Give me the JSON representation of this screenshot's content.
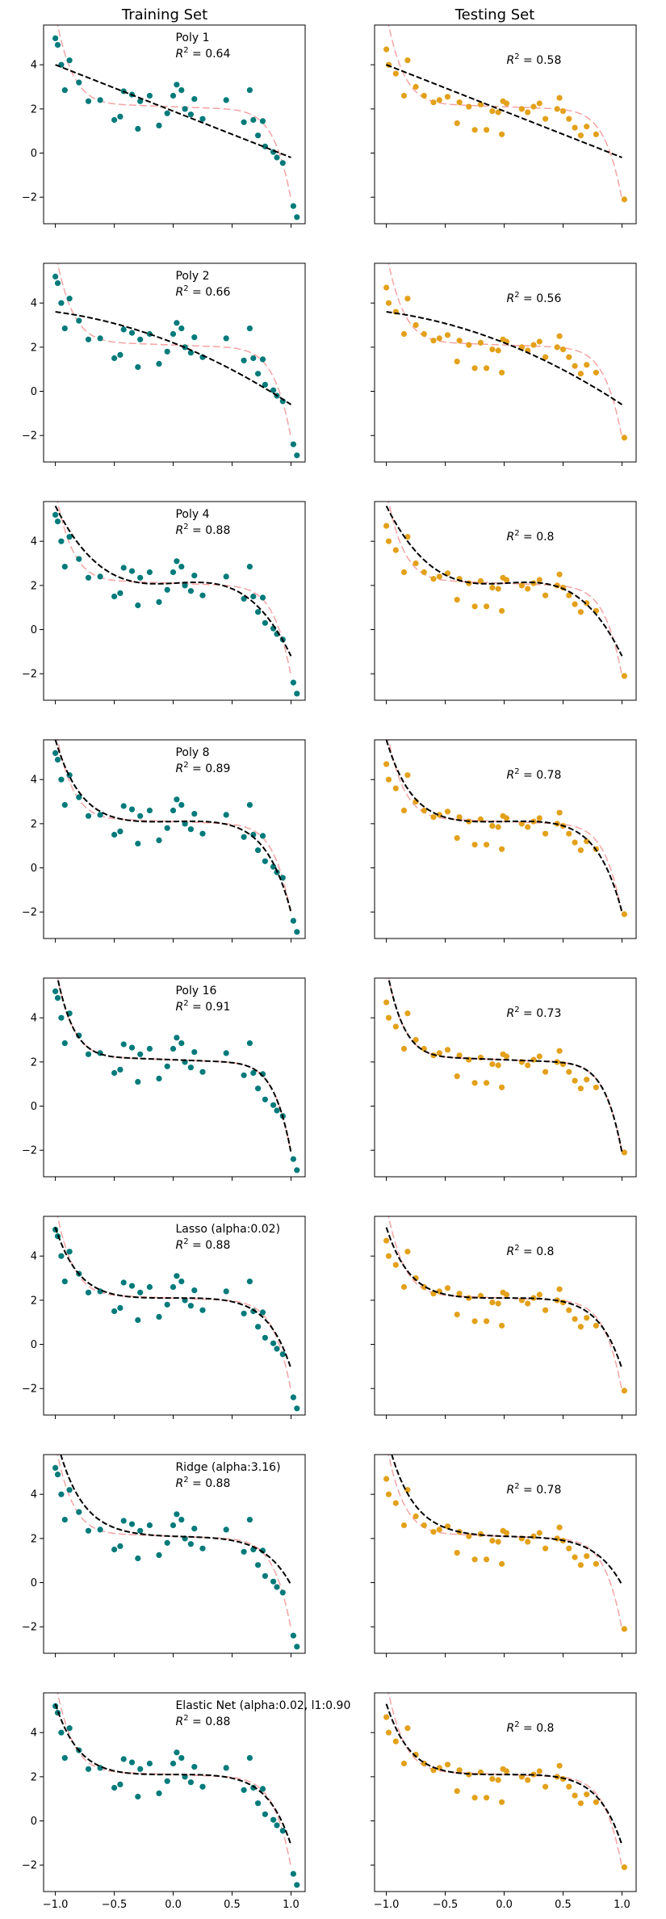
{
  "figure": {
    "column_titles": [
      "Training Set",
      "Testing Set"
    ],
    "x_ticks": [
      -1.0,
      -0.5,
      0.0,
      0.5,
      1.0
    ],
    "x_tick_labels": [
      "−1.0",
      "−0.5",
      "0.0",
      "0.5",
      "1.0"
    ],
    "y_ticks": [
      -2,
      0,
      2,
      4
    ],
    "y_tick_labels": [
      "−2",
      "0",
      "2",
      "4"
    ]
  },
  "colors": {
    "train_points": "#007a7a",
    "test_points": "#e3a11b",
    "fitted_curve": "#000000",
    "true_function": "#f4a4a4"
  },
  "chart_data": {
    "type": "scatter",
    "xlim": [
      -1.1,
      1.12
    ],
    "ylim": [
      -3.2,
      5.8
    ],
    "grid": false,
    "true_function": {
      "coef": [
        2.1,
        -0.2,
        0,
        0,
        0,
        0,
        0,
        -4
      ]
    },
    "train_points": [
      [
        -1.0,
        5.2
      ],
      [
        -0.98,
        4.9
      ],
      [
        -0.95,
        4.0
      ],
      [
        -0.92,
        2.85
      ],
      [
        -0.88,
        4.2
      ],
      [
        -0.8,
        3.2
      ],
      [
        -0.72,
        2.35
      ],
      [
        -0.62,
        2.4
      ],
      [
        -0.5,
        1.5
      ],
      [
        -0.45,
        1.65
      ],
      [
        -0.42,
        2.8
      ],
      [
        -0.35,
        2.65
      ],
      [
        -0.3,
        1.1
      ],
      [
        -0.28,
        2.35
      ],
      [
        -0.2,
        2.6
      ],
      [
        -0.12,
        1.25
      ],
      [
        -0.05,
        1.8
      ],
      [
        0.0,
        2.6
      ],
      [
        0.03,
        3.1
      ],
      [
        0.07,
        2.85
      ],
      [
        0.1,
        2.0
      ],
      [
        0.15,
        1.75
      ],
      [
        0.18,
        2.45
      ],
      [
        0.25,
        1.55
      ],
      [
        0.45,
        2.4
      ],
      [
        0.6,
        1.4
      ],
      [
        0.65,
        2.85
      ],
      [
        0.68,
        1.5
      ],
      [
        0.72,
        0.8
      ],
      [
        0.76,
        1.45
      ],
      [
        0.78,
        0.3
      ],
      [
        0.85,
        0.05
      ],
      [
        0.88,
        -0.2
      ],
      [
        0.93,
        -0.45
      ],
      [
        1.02,
        -2.4
      ],
      [
        1.05,
        -2.9
      ]
    ],
    "test_points": [
      [
        -1.0,
        4.7
      ],
      [
        -0.98,
        4.0
      ],
      [
        -0.92,
        3.6
      ],
      [
        -0.85,
        2.6
      ],
      [
        -0.82,
        4.2
      ],
      [
        -0.75,
        3.0
      ],
      [
        -0.68,
        2.6
      ],
      [
        -0.6,
        2.3
      ],
      [
        -0.55,
        2.4
      ],
      [
        -0.48,
        2.55
      ],
      [
        -0.4,
        1.35
      ],
      [
        -0.38,
        2.3
      ],
      [
        -0.3,
        2.1
      ],
      [
        -0.25,
        1.05
      ],
      [
        -0.2,
        2.2
      ],
      [
        -0.15,
        1.05
      ],
      [
        -0.1,
        1.9
      ],
      [
        -0.05,
        1.85
      ],
      [
        -0.02,
        0.85
      ],
      [
        -0.01,
        2.35
      ],
      [
        0.02,
        2.25
      ],
      [
        0.15,
        2.0
      ],
      [
        0.2,
        1.85
      ],
      [
        0.25,
        2.1
      ],
      [
        0.3,
        2.25
      ],
      [
        0.35,
        1.55
      ],
      [
        0.45,
        2.0
      ],
      [
        0.47,
        2.5
      ],
      [
        0.5,
        1.9
      ],
      [
        0.55,
        1.55
      ],
      [
        0.6,
        1.15
      ],
      [
        0.65,
        0.8
      ],
      [
        0.7,
        1.2
      ],
      [
        0.78,
        0.85
      ],
      [
        1.02,
        -2.1
      ]
    ],
    "models": [
      {
        "label": "Poly 1",
        "r2_train": "0.64",
        "r2_test": "0.58",
        "fit_coef": [
          1.9,
          -2.1
        ]
      },
      {
        "label": "Poly 2",
        "r2_train": "0.66",
        "r2_test": "0.56",
        "fit_coef": [
          2.2,
          -2.1,
          -0.7
        ]
      },
      {
        "label": "Poly 4",
        "r2_train": "0.88",
        "r2_test": "0.8",
        "fit_coef": [
          2.1,
          0.3,
          0.3,
          -3.7,
          -0.2
        ]
      },
      {
        "label": "Poly 8",
        "r2_train": "0.89",
        "r2_test": "0.78",
        "fit_coef": [
          2.1,
          0.1,
          0,
          -1.5,
          0,
          -1.5,
          -0.2,
          -1.0,
          0
        ]
      },
      {
        "label": "Poly 16",
        "r2_train": "0.91",
        "r2_test": "0.73",
        "fit_coef": [
          2.1,
          -0.2,
          0,
          0,
          0,
          0,
          0,
          -4
        ]
      },
      {
        "label": "Lasso (alpha:0.02)",
        "r2_train": "0.88",
        "r2_test": "0.8",
        "fit_coef": [
          2.1,
          0,
          0,
          -1.0,
          0,
          -1.0,
          0,
          -1.2
        ]
      },
      {
        "label": "Ridge (alpha:3.16)",
        "r2_train": "0.88",
        "r2_test": "0.78",
        "fit_coef": [
          2.1,
          -0.2,
          0.3,
          -1.2,
          0.3,
          -1.0,
          0.3,
          -1.0,
          0.3
        ]
      },
      {
        "label": "Elastic Net (alpha:0.02, l1:0.90",
        "r2_train": "0.88",
        "r2_test": "0.8",
        "fit_coef": [
          2.1,
          0,
          0,
          -1.0,
          0,
          -1.0,
          0,
          -1.2
        ]
      }
    ]
  }
}
